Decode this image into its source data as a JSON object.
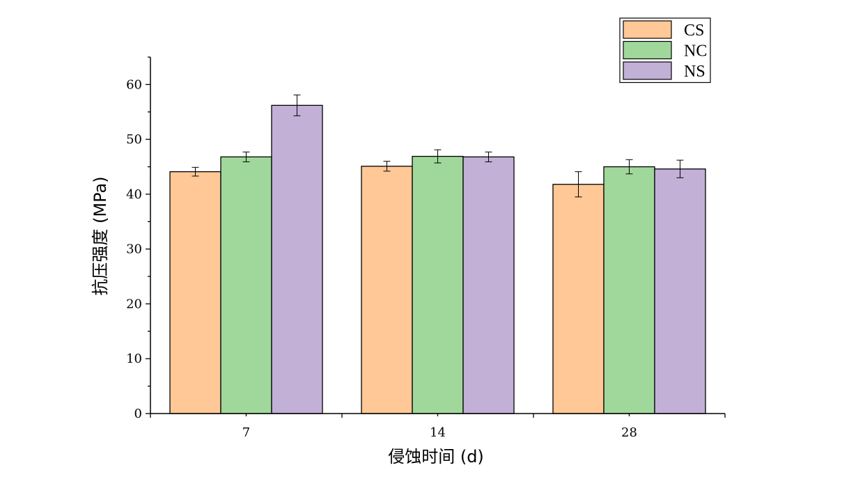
{
  "chart_data": {
    "type": "bar",
    "title": "",
    "xlabel": "侵蚀时间 (d)",
    "ylabel": "抗压强度 (MPa)",
    "categories": [
      "7",
      "14",
      "28"
    ],
    "ylim": [
      0,
      65
    ],
    "yticks": [
      0,
      10,
      20,
      30,
      40,
      50,
      60
    ],
    "grid": false,
    "legend_position": "top-right",
    "series": [
      {
        "name": "CS",
        "color": "#FFC896",
        "values": [
          44.1,
          45.1,
          41.8
        ],
        "errors": [
          0.8,
          0.9,
          2.3
        ]
      },
      {
        "name": "NC",
        "color": "#A0D89B",
        "values": [
          46.8,
          46.9,
          45.0
        ],
        "errors": [
          0.9,
          1.2,
          1.3
        ]
      },
      {
        "name": "NS",
        "color": "#C2B0D6",
        "values": [
          56.2,
          46.8,
          44.6
        ],
        "errors": [
          1.9,
          0.9,
          1.6
        ]
      }
    ]
  }
}
